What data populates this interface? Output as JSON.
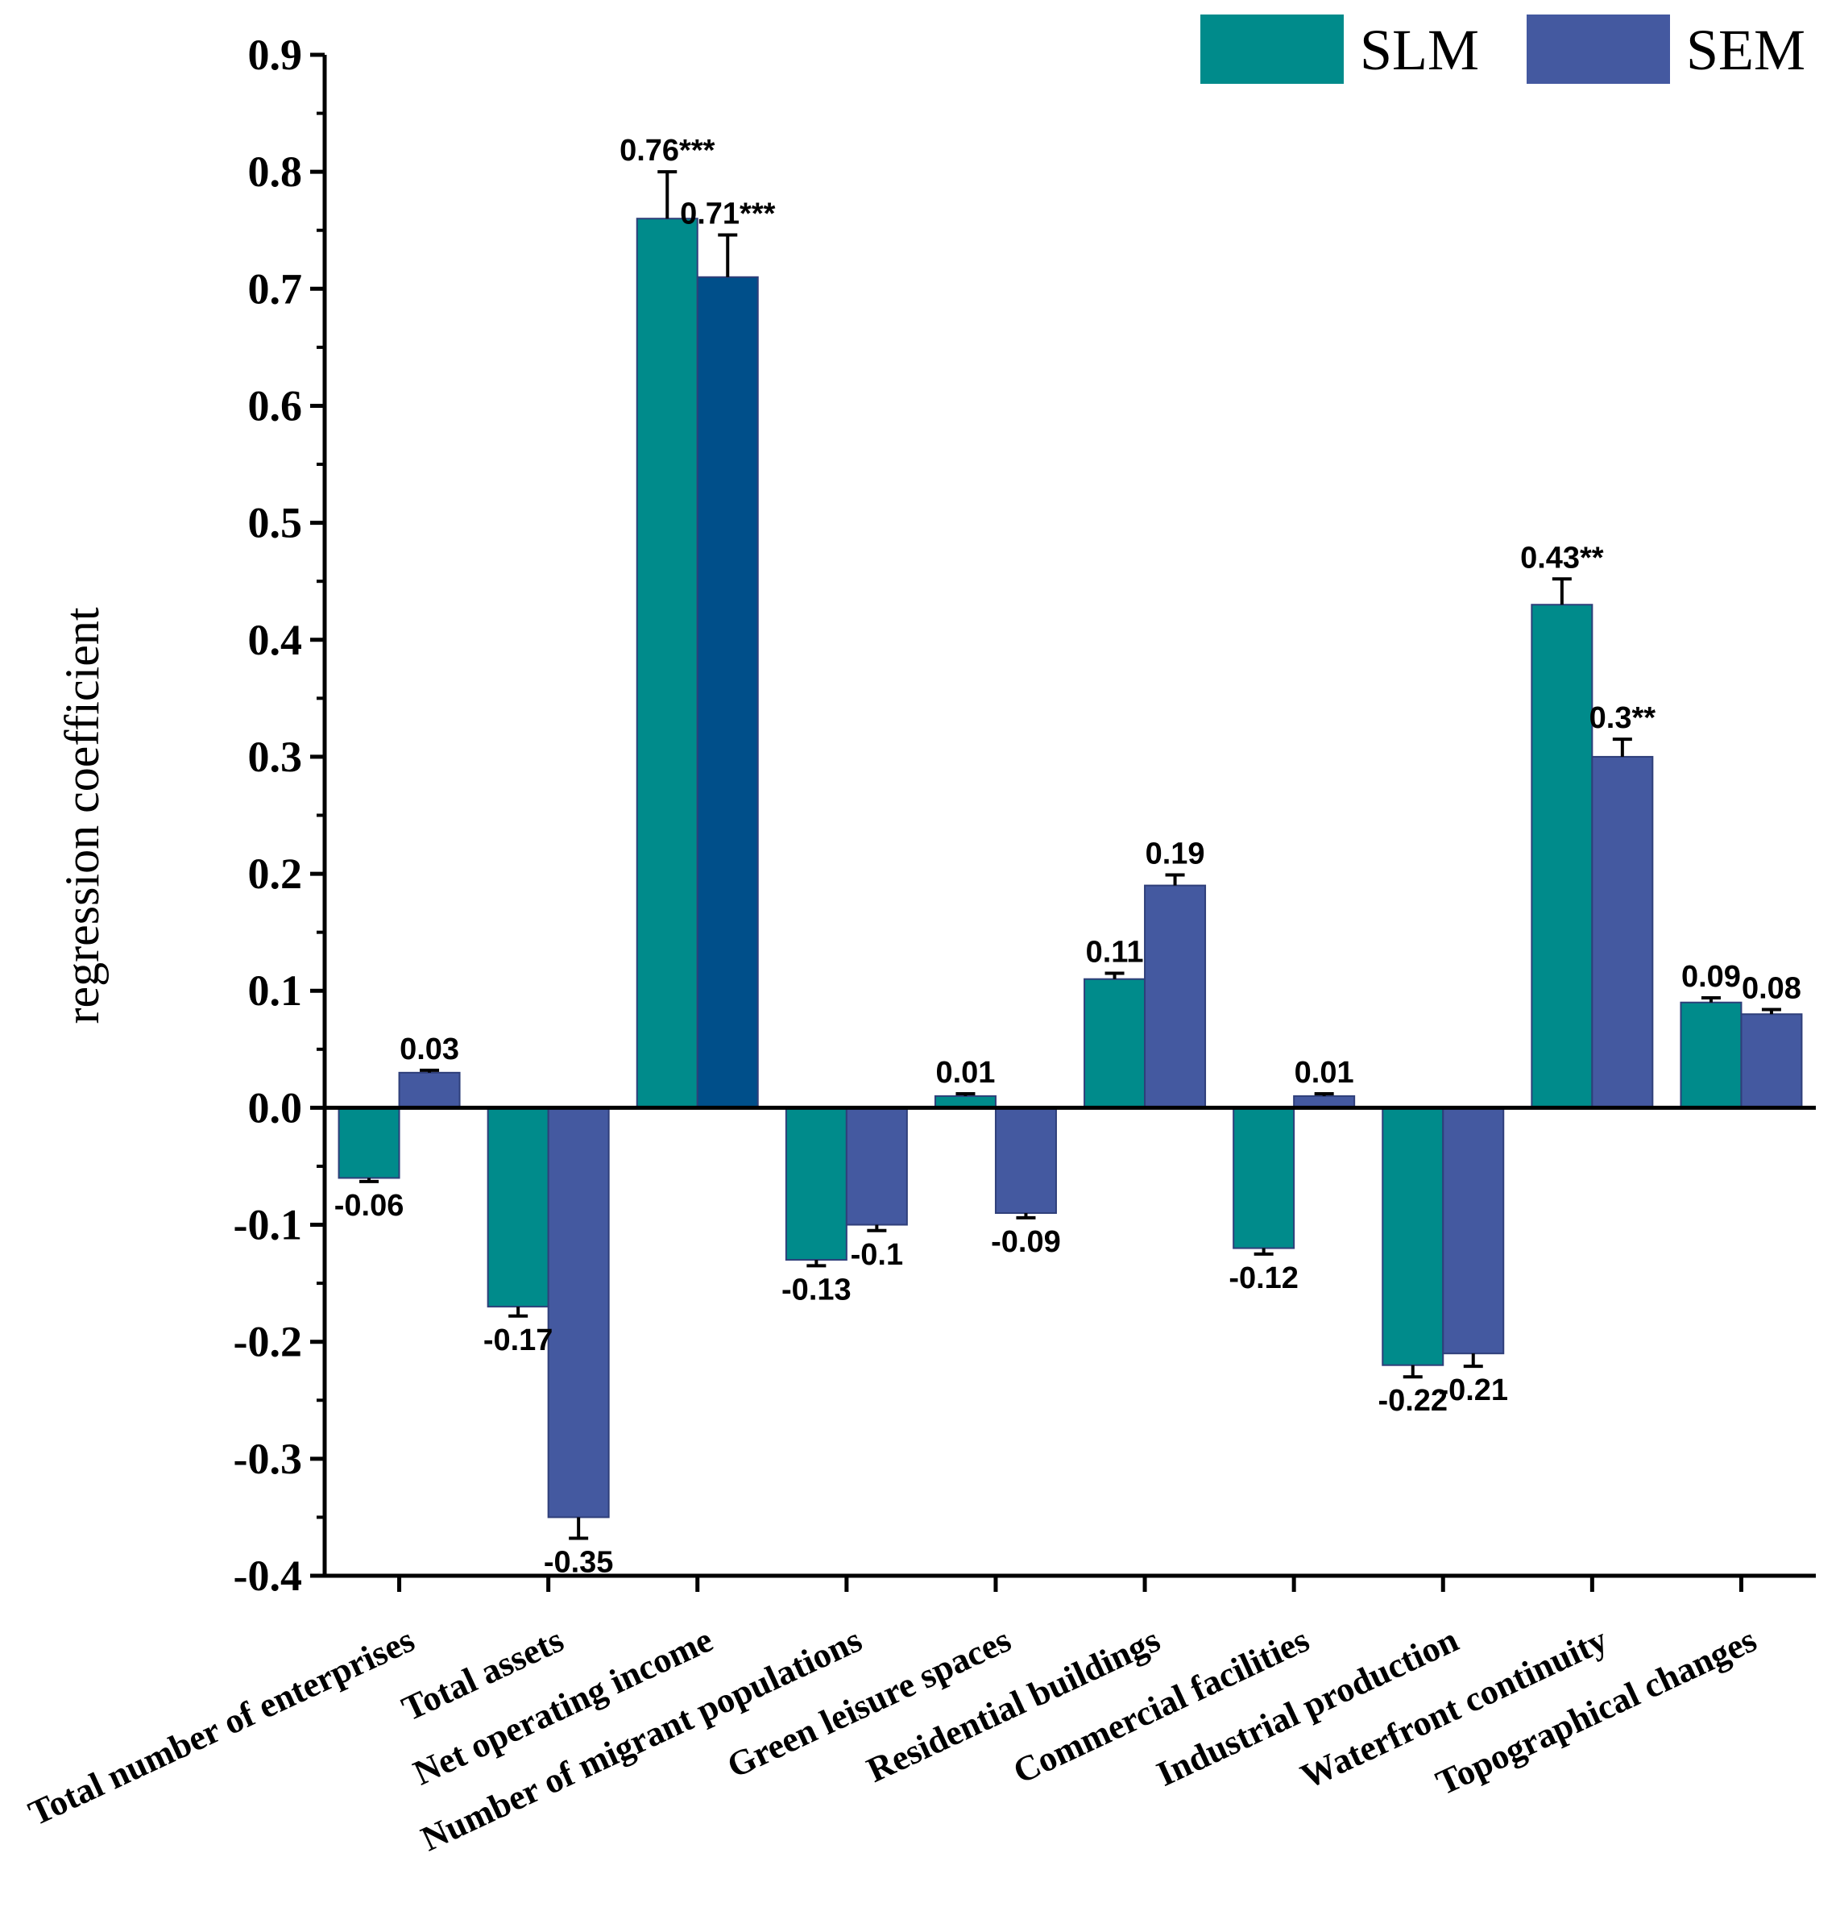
{
  "chart_data": {
    "type": "bar",
    "title": "",
    "xlabel": "",
    "ylabel": "regression coefficient",
    "ylim": [
      -0.4,
      0.9
    ],
    "yticks": [
      "0.9",
      "0.8",
      "0.7",
      "0.6",
      "0.5",
      "0.4",
      "0.3",
      "0.2",
      "0.1",
      "0.0",
      "-0.1",
      "-0.2",
      "-0.3",
      "-0.4"
    ],
    "ytick_values": [
      0.9,
      0.8,
      0.7,
      0.6,
      0.5,
      0.4,
      0.3,
      0.2,
      0.1,
      0.0,
      -0.1,
      -0.2,
      -0.3,
      -0.4
    ],
    "categories": [
      "Total number of enterprises",
      "Total assets",
      "Net operating income",
      "Number of migrant populations",
      "Green leisure spaces",
      "Residential buildings",
      "Commercial facilities",
      "Industrial production",
      "Waterfront continuity",
      "Topographical changes"
    ],
    "series": [
      {
        "name": "SLM",
        "color": "#008B8B",
        "values": [
          -0.06,
          -0.17,
          0.76,
          -0.13,
          0.01,
          0.11,
          -0.12,
          -0.22,
          0.43,
          0.09
        ],
        "errors": [
          0.003,
          0.008,
          0.04,
          0.005,
          0.002,
          0.005,
          0.005,
          0.01,
          0.022,
          0.004
        ],
        "labels": [
          "-0.06",
          "-0.17",
          "0.76***",
          "-0.13",
          "0.01",
          "0.11",
          "-0.12",
          "-0.22",
          "0.43**",
          "0.09"
        ]
      },
      {
        "name": "SEM",
        "color": "#4459A0",
        "values": [
          0.03,
          -0.35,
          0.71,
          -0.1,
          -0.09,
          0.19,
          0.01,
          -0.21,
          0.3,
          0.08
        ],
        "errors": [
          0.002,
          0.018,
          0.036,
          0.005,
          0.004,
          0.009,
          0.002,
          0.011,
          0.015,
          0.004
        ],
        "labels": [
          "0.03",
          "-0.35",
          "0.71***",
          "-0.1",
          "-0.09",
          "0.19",
          "0.01",
          "-0.21",
          "0.3**",
          "0.08"
        ]
      }
    ],
    "legend": {
      "position": "top-right",
      "entries": [
        "SLM",
        "SEM"
      ]
    },
    "grid": false
  }
}
